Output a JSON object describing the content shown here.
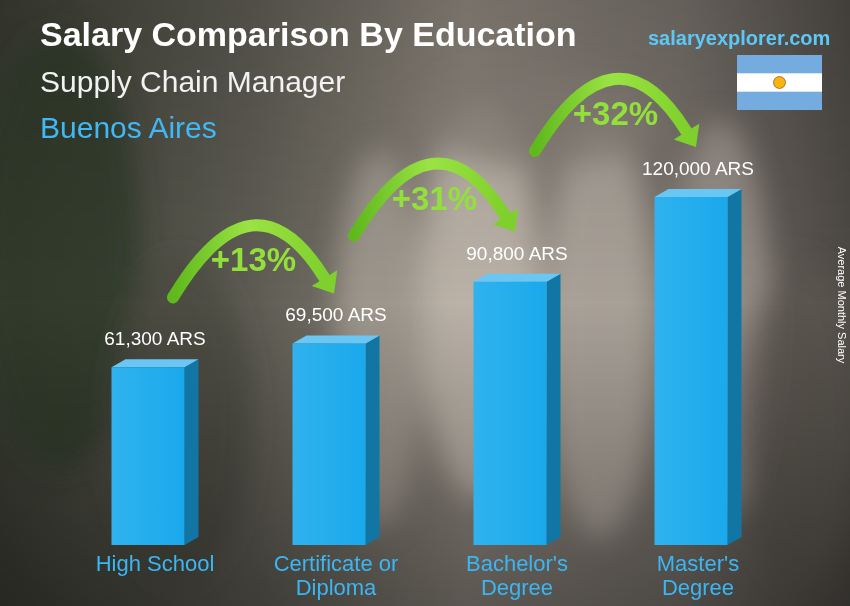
{
  "chart_data": {
    "type": "bar",
    "title": "Salary Comparison By Education",
    "subtitle": "Supply Chain Manager",
    "location": "Buenos Aires",
    "source": "salaryexplorer.com",
    "y_label": "Average Monthly Salary",
    "categories": [
      "High School",
      "Certificate or Diploma",
      "Bachelor's Degree",
      "Master's Degree"
    ],
    "values": [
      61300,
      69500,
      90800,
      120000
    ],
    "value_labels": [
      "61,300 ARS",
      "69,500 ARS",
      "90,800 ARS",
      "120,000 ARS"
    ],
    "annotations": [
      "+13%",
      "+31%",
      "+32%"
    ],
    "color": "#19a9ec",
    "ylim": [
      0,
      120000
    ],
    "data_labels": true,
    "tick_labels": false,
    "grid": false
  }
}
